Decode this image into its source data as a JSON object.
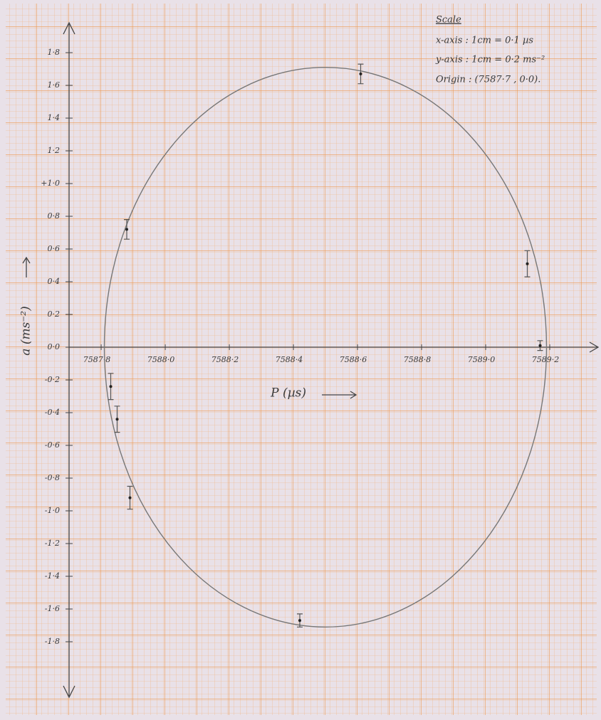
{
  "chart_data": {
    "type": "scatter",
    "xlabel": "P (µs)",
    "ylabel": "a (ms⁻²)",
    "x": [
      7587.88,
      7588.61,
      7589.13,
      7589.17,
      7588.42,
      7587.89,
      7587.85,
      7587.83
    ],
    "y": [
      0.72,
      1.67,
      0.51,
      0.01,
      -1.67,
      -0.92,
      -0.44,
      -0.24
    ],
    "yerr": [
      0.06,
      0.06,
      0.08,
      0.03,
      0.04,
      0.07,
      0.08,
      0.08
    ],
    "ellipse": {
      "cx": 7588.5,
      "cy": 0,
      "rx": 0.69,
      "ry": 1.71
    },
    "xlim": [
      7587.7,
      7589.3
    ],
    "ylim": [
      -2.0,
      2.0
    ],
    "xticks": [
      {
        "value": 7587.8,
        "label": "7587·8"
      },
      {
        "value": 7588.0,
        "label": "7588·0"
      },
      {
        "value": 7588.2,
        "label": "7588·2"
      },
      {
        "value": 7588.4,
        "label": "7588·4"
      },
      {
        "value": 7588.6,
        "label": "7588·6"
      },
      {
        "value": 7588.8,
        "label": "7588·8"
      },
      {
        "value": 7589.0,
        "label": "7589·0"
      },
      {
        "value": 7589.2,
        "label": "7589·2"
      }
    ],
    "yticks": [
      {
        "value": 1.8,
        "label": "1·8"
      },
      {
        "value": 1.6,
        "label": "1·6"
      },
      {
        "value": 1.4,
        "label": "1·4"
      },
      {
        "value": 1.2,
        "label": "1·2"
      },
      {
        "value": 1.0,
        "label": "+1·0"
      },
      {
        "value": 0.8,
        "label": "0·8"
      },
      {
        "value": 0.6,
        "label": "0·6"
      },
      {
        "value": 0.4,
        "label": "0·4"
      },
      {
        "value": 0.2,
        "label": "0·2"
      },
      {
        "value": 0,
        "label": "0·0"
      },
      {
        "value": -0.2,
        "label": "-0·2"
      },
      {
        "value": -0.4,
        "label": "-0·4"
      },
      {
        "value": -0.6,
        "label": "-0·6"
      },
      {
        "value": -0.8,
        "label": "-0·8"
      },
      {
        "value": -1.0,
        "label": "-1·0"
      },
      {
        "value": -1.2,
        "label": "-1·2"
      },
      {
        "value": -1.4,
        "label": "-1·4"
      },
      {
        "value": -1.6,
        "label": "-1·6"
      },
      {
        "value": -1.8,
        "label": "-1·8"
      }
    ],
    "annotations": [
      "Scale",
      "x-axis : 1cm = 0·1 µs",
      "y-axis : 1cm = 0·2 ms⁻²",
      "Origin : (7587·7 , 0·0)."
    ],
    "color": "#555555"
  }
}
